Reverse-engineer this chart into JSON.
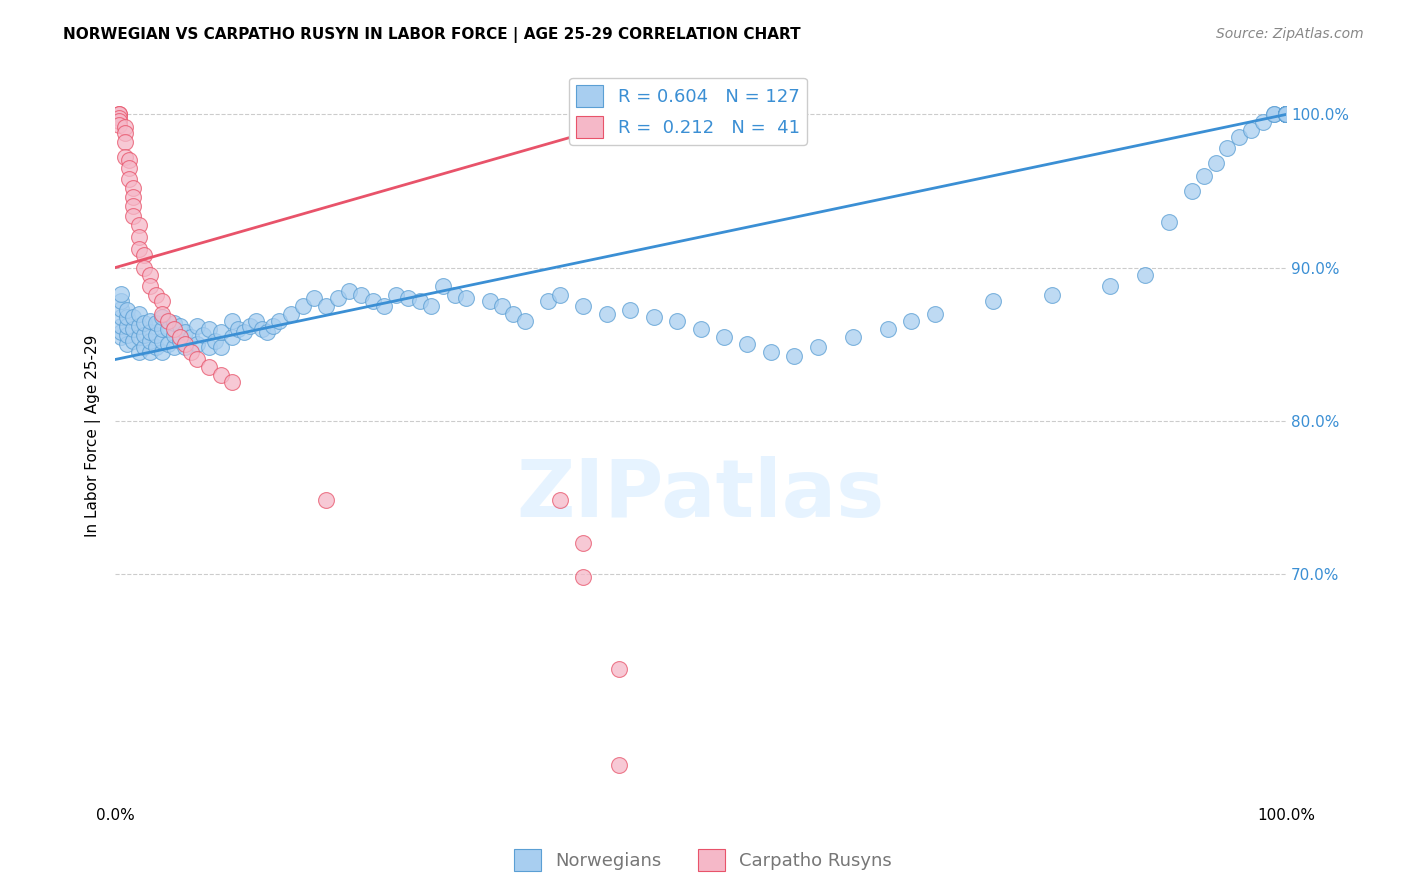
{
  "title": "NORWEGIAN VS CARPATHO RUSYN IN LABOR FORCE | AGE 25-29 CORRELATION CHART",
  "source": "Source: ZipAtlas.com",
  "ylabel": "In Labor Force | Age 25-29",
  "xlim": [
    0.0,
    1.0
  ],
  "ylim": [
    0.55,
    1.03
  ],
  "y_tick_positions": [
    1.0,
    0.9,
    0.8,
    0.7
  ],
  "grid_color": "#cccccc",
  "background_color": "#ffffff",
  "watermark_text": "ZIPatlas",
  "blue_color": "#A8CEF0",
  "pink_color": "#F5B8C8",
  "blue_edge_color": "#5B9FD4",
  "pink_edge_color": "#E8536A",
  "blue_line_color": "#3B8FD4",
  "pink_line_color": "#E8536A",
  "tick_color": "#3B8FD4",
  "legend_blue_R": "0.604",
  "legend_blue_N": "127",
  "legend_pink_R": "0.212",
  "legend_pink_N": " 41",
  "blue_points_x": [
    0.005,
    0.005,
    0.005,
    0.005,
    0.005,
    0.005,
    0.005,
    0.01,
    0.01,
    0.01,
    0.01,
    0.01,
    0.015,
    0.015,
    0.015,
    0.02,
    0.02,
    0.02,
    0.02,
    0.025,
    0.025,
    0.025,
    0.03,
    0.03,
    0.03,
    0.03,
    0.035,
    0.035,
    0.035,
    0.04,
    0.04,
    0.04,
    0.04,
    0.045,
    0.045,
    0.05,
    0.05,
    0.05,
    0.055,
    0.055,
    0.06,
    0.06,
    0.065,
    0.07,
    0.07,
    0.075,
    0.08,
    0.08,
    0.085,
    0.09,
    0.09,
    0.1,
    0.1,
    0.105,
    0.11,
    0.115,
    0.12,
    0.125,
    0.13,
    0.135,
    0.14,
    0.15,
    0.16,
    0.17,
    0.18,
    0.19,
    0.2,
    0.21,
    0.22,
    0.23,
    0.24,
    0.25,
    0.26,
    0.27,
    0.28,
    0.29,
    0.3,
    0.32,
    0.33,
    0.34,
    0.35,
    0.37,
    0.38,
    0.4,
    0.42,
    0.44,
    0.46,
    0.48,
    0.5,
    0.52,
    0.54,
    0.56,
    0.58,
    0.6,
    0.63,
    0.66,
    0.68,
    0.7,
    0.75,
    0.8,
    0.85,
    0.88,
    0.9,
    0.92,
    0.93,
    0.94,
    0.95,
    0.96,
    0.97,
    0.98,
    0.99,
    0.99,
    1.0,
    1.0,
    1.0,
    1.0,
    1.0,
    1.0,
    1.0,
    1.0,
    1.0,
    1.0,
    1.0,
    1.0,
    1.0,
    1.0,
    1.0
  ],
  "blue_points_y": [
    0.855,
    0.858,
    0.862,
    0.868,
    0.873,
    0.878,
    0.883,
    0.85,
    0.856,
    0.862,
    0.868,
    0.872,
    0.852,
    0.86,
    0.868,
    0.845,
    0.855,
    0.862,
    0.87,
    0.848,
    0.856,
    0.864,
    0.845,
    0.852,
    0.858,
    0.865,
    0.848,
    0.856,
    0.864,
    0.845,
    0.852,
    0.86,
    0.868,
    0.85,
    0.86,
    0.848,
    0.856,
    0.864,
    0.852,
    0.862,
    0.848,
    0.858,
    0.855,
    0.85,
    0.862,
    0.856,
    0.848,
    0.86,
    0.852,
    0.848,
    0.858,
    0.855,
    0.865,
    0.86,
    0.858,
    0.862,
    0.865,
    0.86,
    0.858,
    0.862,
    0.865,
    0.87,
    0.875,
    0.88,
    0.875,
    0.88,
    0.885,
    0.882,
    0.878,
    0.875,
    0.882,
    0.88,
    0.878,
    0.875,
    0.888,
    0.882,
    0.88,
    0.878,
    0.875,
    0.87,
    0.865,
    0.878,
    0.882,
    0.875,
    0.87,
    0.872,
    0.868,
    0.865,
    0.86,
    0.855,
    0.85,
    0.845,
    0.842,
    0.848,
    0.855,
    0.86,
    0.865,
    0.87,
    0.878,
    0.882,
    0.888,
    0.895,
    0.93,
    0.95,
    0.96,
    0.968,
    0.978,
    0.985,
    0.99,
    0.995,
    1.0,
    1.0,
    1.0,
    1.0,
    1.0,
    1.0,
    1.0,
    1.0,
    1.0,
    1.0,
    1.0,
    1.0,
    1.0,
    1.0,
    1.0,
    1.0,
    1.0
  ],
  "pink_points_x": [
    0.003,
    0.003,
    0.003,
    0.003,
    0.003,
    0.008,
    0.008,
    0.008,
    0.008,
    0.012,
    0.012,
    0.012,
    0.015,
    0.015,
    0.015,
    0.015,
    0.02,
    0.02,
    0.02,
    0.025,
    0.025,
    0.03,
    0.03,
    0.035,
    0.04,
    0.04,
    0.045,
    0.05,
    0.055,
    0.06,
    0.065,
    0.07,
    0.08,
    0.09,
    0.1,
    0.18,
    0.38,
    0.4,
    0.4,
    0.43,
    0.43
  ],
  "pink_points_y": [
    1.0,
    1.0,
    0.998,
    0.996,
    0.993,
    0.992,
    0.988,
    0.982,
    0.972,
    0.97,
    0.965,
    0.958,
    0.952,
    0.946,
    0.94,
    0.934,
    0.928,
    0.92,
    0.912,
    0.908,
    0.9,
    0.895,
    0.888,
    0.882,
    0.878,
    0.87,
    0.865,
    0.86,
    0.855,
    0.85,
    0.845,
    0.84,
    0.835,
    0.83,
    0.825,
    0.748,
    0.748,
    0.72,
    0.698,
    0.638,
    0.575
  ],
  "blue_trend_x": [
    0.0,
    1.0
  ],
  "blue_trend_y": [
    0.84,
    1.0
  ],
  "pink_trend_x": [
    0.0,
    0.48
  ],
  "pink_trend_y": [
    0.9,
    1.005
  ],
  "title_fontsize": 11,
  "axis_label_fontsize": 11,
  "tick_fontsize": 11,
  "legend_fontsize": 13,
  "source_fontsize": 10
}
